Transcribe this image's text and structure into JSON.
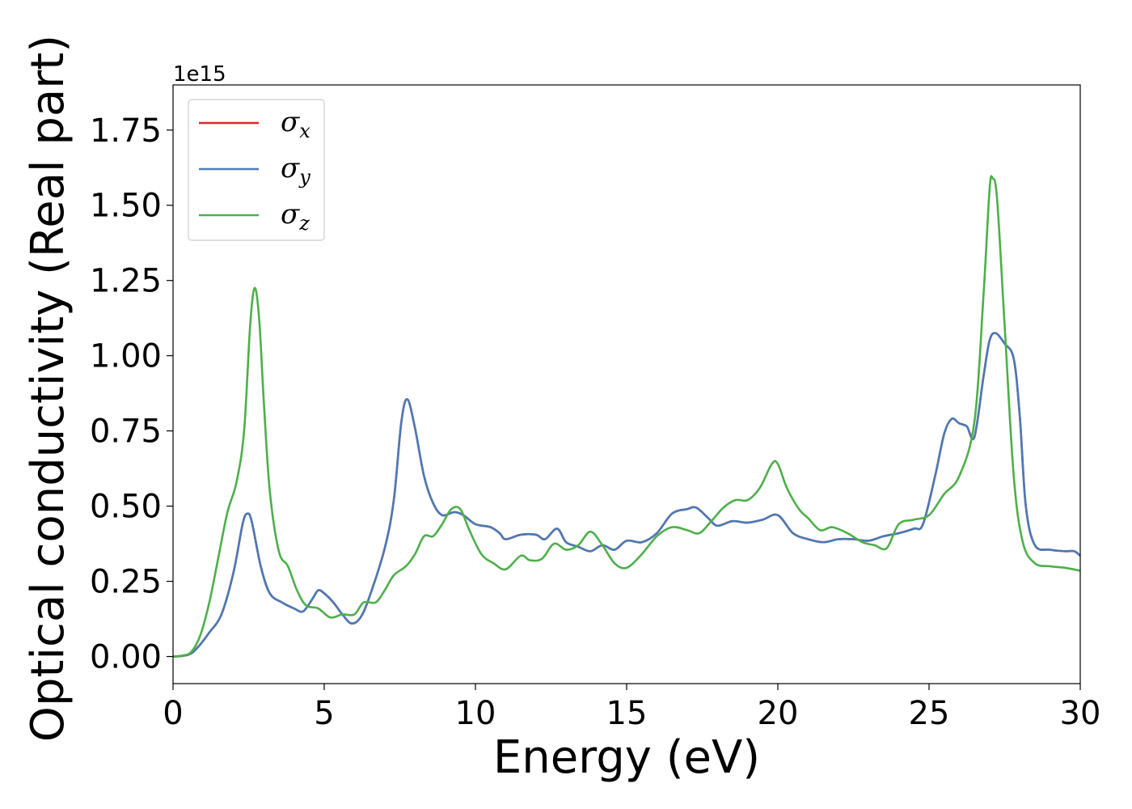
{
  "chart_data": {
    "type": "line",
    "xlabel": "Energy (eV)",
    "ylabel": "Optical conductivity (Real part)",
    "y_offset_label": "1e15",
    "xlim": [
      0,
      30
    ],
    "ylim": [
      -0.09,
      1.9
    ],
    "xticks": [
      0,
      5,
      10,
      15,
      20,
      25,
      30
    ],
    "xtick_labels": [
      "0",
      "5",
      "10",
      "15",
      "20",
      "25",
      "30"
    ],
    "yticks": [
      0.0,
      0.25,
      0.5,
      0.75,
      1.0,
      1.25,
      1.5,
      1.75
    ],
    "ytick_labels": [
      "0.00",
      "0.25",
      "0.50",
      "0.75",
      "1.00",
      "1.25",
      "1.50",
      "1.75"
    ],
    "grid": false,
    "legend_position": "top-left",
    "series": [
      {
        "name": "σx",
        "symbol": "σ",
        "subscript": "x",
        "color": "#d62728",
        "points": [
          [
            0,
            0
          ],
          [
            0.3,
            0.002
          ],
          [
            0.6,
            0.01
          ],
          [
            0.9,
            0.04
          ],
          [
            1.2,
            0.08
          ],
          [
            1.6,
            0.14
          ],
          [
            2.0,
            0.28
          ],
          [
            2.3,
            0.44
          ],
          [
            2.45,
            0.475
          ],
          [
            2.6,
            0.45
          ],
          [
            2.9,
            0.3
          ],
          [
            3.2,
            0.21
          ],
          [
            3.6,
            0.18
          ],
          [
            4.0,
            0.16
          ],
          [
            4.3,
            0.15
          ],
          [
            4.6,
            0.19
          ],
          [
            4.8,
            0.22
          ],
          [
            5.0,
            0.21
          ],
          [
            5.3,
            0.18
          ],
          [
            5.6,
            0.14
          ],
          [
            5.9,
            0.11
          ],
          [
            6.2,
            0.13
          ],
          [
            6.5,
            0.2
          ],
          [
            7.0,
            0.36
          ],
          [
            7.3,
            0.52
          ],
          [
            7.55,
            0.78
          ],
          [
            7.75,
            0.855
          ],
          [
            8.0,
            0.76
          ],
          [
            8.3,
            0.6
          ],
          [
            8.6,
            0.51
          ],
          [
            8.9,
            0.47
          ],
          [
            9.3,
            0.48
          ],
          [
            9.6,
            0.47
          ],
          [
            10.0,
            0.44
          ],
          [
            10.5,
            0.43
          ],
          [
            10.8,
            0.41
          ],
          [
            11.0,
            0.39
          ],
          [
            11.5,
            0.405
          ],
          [
            12.0,
            0.405
          ],
          [
            12.3,
            0.39
          ],
          [
            12.7,
            0.425
          ],
          [
            13.0,
            0.38
          ],
          [
            13.4,
            0.365
          ],
          [
            13.8,
            0.35
          ],
          [
            14.2,
            0.37
          ],
          [
            14.6,
            0.355
          ],
          [
            15.0,
            0.385
          ],
          [
            15.5,
            0.38
          ],
          [
            16.0,
            0.41
          ],
          [
            16.5,
            0.475
          ],
          [
            17.0,
            0.49
          ],
          [
            17.3,
            0.495
          ],
          [
            17.7,
            0.46
          ],
          [
            18.0,
            0.435
          ],
          [
            18.5,
            0.45
          ],
          [
            19.0,
            0.445
          ],
          [
            19.5,
            0.455
          ],
          [
            20.0,
            0.47
          ],
          [
            20.5,
            0.41
          ],
          [
            21.0,
            0.39
          ],
          [
            21.5,
            0.38
          ],
          [
            22.0,
            0.39
          ],
          [
            22.5,
            0.39
          ],
          [
            23.0,
            0.385
          ],
          [
            23.5,
            0.4
          ],
          [
            24.0,
            0.41
          ],
          [
            24.5,
            0.425
          ],
          [
            24.8,
            0.44
          ],
          [
            25.2,
            0.6
          ],
          [
            25.5,
            0.74
          ],
          [
            25.75,
            0.79
          ],
          [
            26.0,
            0.775
          ],
          [
            26.25,
            0.765
          ],
          [
            26.5,
            0.73
          ],
          [
            26.8,
            0.93
          ],
          [
            27.0,
            1.05
          ],
          [
            27.2,
            1.075
          ],
          [
            27.5,
            1.04
          ],
          [
            27.8,
            0.99
          ],
          [
            28.0,
            0.8
          ],
          [
            28.2,
            0.5
          ],
          [
            28.5,
            0.37
          ],
          [
            29.0,
            0.355
          ],
          [
            29.5,
            0.35
          ],
          [
            29.8,
            0.35
          ],
          [
            30.0,
            0.335
          ]
        ]
      },
      {
        "name": "σy",
        "symbol": "σ",
        "subscript": "y",
        "color": "#4a7ab5",
        "points": [
          [
            0,
            0
          ],
          [
            0.3,
            0.002
          ],
          [
            0.6,
            0.01
          ],
          [
            0.9,
            0.04
          ],
          [
            1.2,
            0.08
          ],
          [
            1.6,
            0.14
          ],
          [
            2.0,
            0.28
          ],
          [
            2.3,
            0.44
          ],
          [
            2.45,
            0.475
          ],
          [
            2.6,
            0.45
          ],
          [
            2.9,
            0.3
          ],
          [
            3.2,
            0.21
          ],
          [
            3.6,
            0.18
          ],
          [
            4.0,
            0.16
          ],
          [
            4.3,
            0.15
          ],
          [
            4.6,
            0.19
          ],
          [
            4.8,
            0.22
          ],
          [
            5.0,
            0.21
          ],
          [
            5.3,
            0.18
          ],
          [
            5.6,
            0.14
          ],
          [
            5.9,
            0.11
          ],
          [
            6.2,
            0.13
          ],
          [
            6.5,
            0.2
          ],
          [
            7.0,
            0.36
          ],
          [
            7.3,
            0.52
          ],
          [
            7.55,
            0.78
          ],
          [
            7.75,
            0.855
          ],
          [
            8.0,
            0.76
          ],
          [
            8.3,
            0.6
          ],
          [
            8.6,
            0.51
          ],
          [
            8.9,
            0.47
          ],
          [
            9.3,
            0.48
          ],
          [
            9.6,
            0.47
          ],
          [
            10.0,
            0.44
          ],
          [
            10.5,
            0.43
          ],
          [
            10.8,
            0.41
          ],
          [
            11.0,
            0.39
          ],
          [
            11.5,
            0.405
          ],
          [
            12.0,
            0.405
          ],
          [
            12.3,
            0.39
          ],
          [
            12.7,
            0.425
          ],
          [
            13.0,
            0.38
          ],
          [
            13.4,
            0.365
          ],
          [
            13.8,
            0.35
          ],
          [
            14.2,
            0.37
          ],
          [
            14.6,
            0.355
          ],
          [
            15.0,
            0.385
          ],
          [
            15.5,
            0.38
          ],
          [
            16.0,
            0.41
          ],
          [
            16.5,
            0.475
          ],
          [
            17.0,
            0.49
          ],
          [
            17.3,
            0.495
          ],
          [
            17.7,
            0.46
          ],
          [
            18.0,
            0.435
          ],
          [
            18.5,
            0.45
          ],
          [
            19.0,
            0.445
          ],
          [
            19.5,
            0.455
          ],
          [
            20.0,
            0.47
          ],
          [
            20.5,
            0.41
          ],
          [
            21.0,
            0.39
          ],
          [
            21.5,
            0.38
          ],
          [
            22.0,
            0.39
          ],
          [
            22.5,
            0.39
          ],
          [
            23.0,
            0.385
          ],
          [
            23.5,
            0.4
          ],
          [
            24.0,
            0.41
          ],
          [
            24.5,
            0.425
          ],
          [
            24.8,
            0.44
          ],
          [
            25.2,
            0.6
          ],
          [
            25.5,
            0.74
          ],
          [
            25.75,
            0.79
          ],
          [
            26.0,
            0.775
          ],
          [
            26.25,
            0.765
          ],
          [
            26.5,
            0.73
          ],
          [
            26.8,
            0.93
          ],
          [
            27.0,
            1.05
          ],
          [
            27.2,
            1.075
          ],
          [
            27.5,
            1.04
          ],
          [
            27.8,
            0.99
          ],
          [
            28.0,
            0.8
          ],
          [
            28.2,
            0.5
          ],
          [
            28.5,
            0.37
          ],
          [
            29.0,
            0.355
          ],
          [
            29.5,
            0.35
          ],
          [
            29.8,
            0.35
          ],
          [
            30.0,
            0.335
          ]
        ]
      },
      {
        "name": "σz",
        "symbol": "σ",
        "subscript": "z",
        "color": "#4daf4a",
        "points": [
          [
            0,
            0
          ],
          [
            0.3,
            0.003
          ],
          [
            0.6,
            0.015
          ],
          [
            0.9,
            0.07
          ],
          [
            1.2,
            0.18
          ],
          [
            1.5,
            0.33
          ],
          [
            1.8,
            0.48
          ],
          [
            2.1,
            0.58
          ],
          [
            2.35,
            0.75
          ],
          [
            2.55,
            1.1
          ],
          [
            2.7,
            1.225
          ],
          [
            2.85,
            1.12
          ],
          [
            3.0,
            0.85
          ],
          [
            3.2,
            0.55
          ],
          [
            3.5,
            0.35
          ],
          [
            3.8,
            0.3
          ],
          [
            4.1,
            0.22
          ],
          [
            4.4,
            0.17
          ],
          [
            4.8,
            0.16
          ],
          [
            5.2,
            0.13
          ],
          [
            5.6,
            0.14
          ],
          [
            6.0,
            0.14
          ],
          [
            6.3,
            0.18
          ],
          [
            6.7,
            0.18
          ],
          [
            7.0,
            0.22
          ],
          [
            7.3,
            0.27
          ],
          [
            7.7,
            0.3
          ],
          [
            8.0,
            0.34
          ],
          [
            8.3,
            0.4
          ],
          [
            8.6,
            0.4
          ],
          [
            8.9,
            0.44
          ],
          [
            9.2,
            0.49
          ],
          [
            9.5,
            0.49
          ],
          [
            9.8,
            0.42
          ],
          [
            10.2,
            0.34
          ],
          [
            10.6,
            0.31
          ],
          [
            11.0,
            0.29
          ],
          [
            11.5,
            0.335
          ],
          [
            11.8,
            0.32
          ],
          [
            12.2,
            0.325
          ],
          [
            12.6,
            0.375
          ],
          [
            13.0,
            0.355
          ],
          [
            13.4,
            0.37
          ],
          [
            13.8,
            0.415
          ],
          [
            14.2,
            0.37
          ],
          [
            14.6,
            0.31
          ],
          [
            15.0,
            0.295
          ],
          [
            15.5,
            0.34
          ],
          [
            16.0,
            0.4
          ],
          [
            16.5,
            0.43
          ],
          [
            17.0,
            0.42
          ],
          [
            17.4,
            0.41
          ],
          [
            17.8,
            0.45
          ],
          [
            18.2,
            0.495
          ],
          [
            18.6,
            0.52
          ],
          [
            19.0,
            0.52
          ],
          [
            19.4,
            0.56
          ],
          [
            19.8,
            0.64
          ],
          [
            20.0,
            0.64
          ],
          [
            20.3,
            0.56
          ],
          [
            20.7,
            0.49
          ],
          [
            21.0,
            0.46
          ],
          [
            21.4,
            0.42
          ],
          [
            21.8,
            0.43
          ],
          [
            22.3,
            0.41
          ],
          [
            22.8,
            0.38
          ],
          [
            23.2,
            0.37
          ],
          [
            23.6,
            0.36
          ],
          [
            24.0,
            0.44
          ],
          [
            24.5,
            0.455
          ],
          [
            25.0,
            0.47
          ],
          [
            25.5,
            0.54
          ],
          [
            26.0,
            0.6
          ],
          [
            26.5,
            0.78
          ],
          [
            26.8,
            1.2
          ],
          [
            27.0,
            1.55
          ],
          [
            27.1,
            1.59
          ],
          [
            27.25,
            1.52
          ],
          [
            27.5,
            1.1
          ],
          [
            27.8,
            0.6
          ],
          [
            28.1,
            0.38
          ],
          [
            28.5,
            0.31
          ],
          [
            29.0,
            0.3
          ],
          [
            29.5,
            0.295
          ],
          [
            30.0,
            0.285
          ]
        ]
      }
    ]
  }
}
